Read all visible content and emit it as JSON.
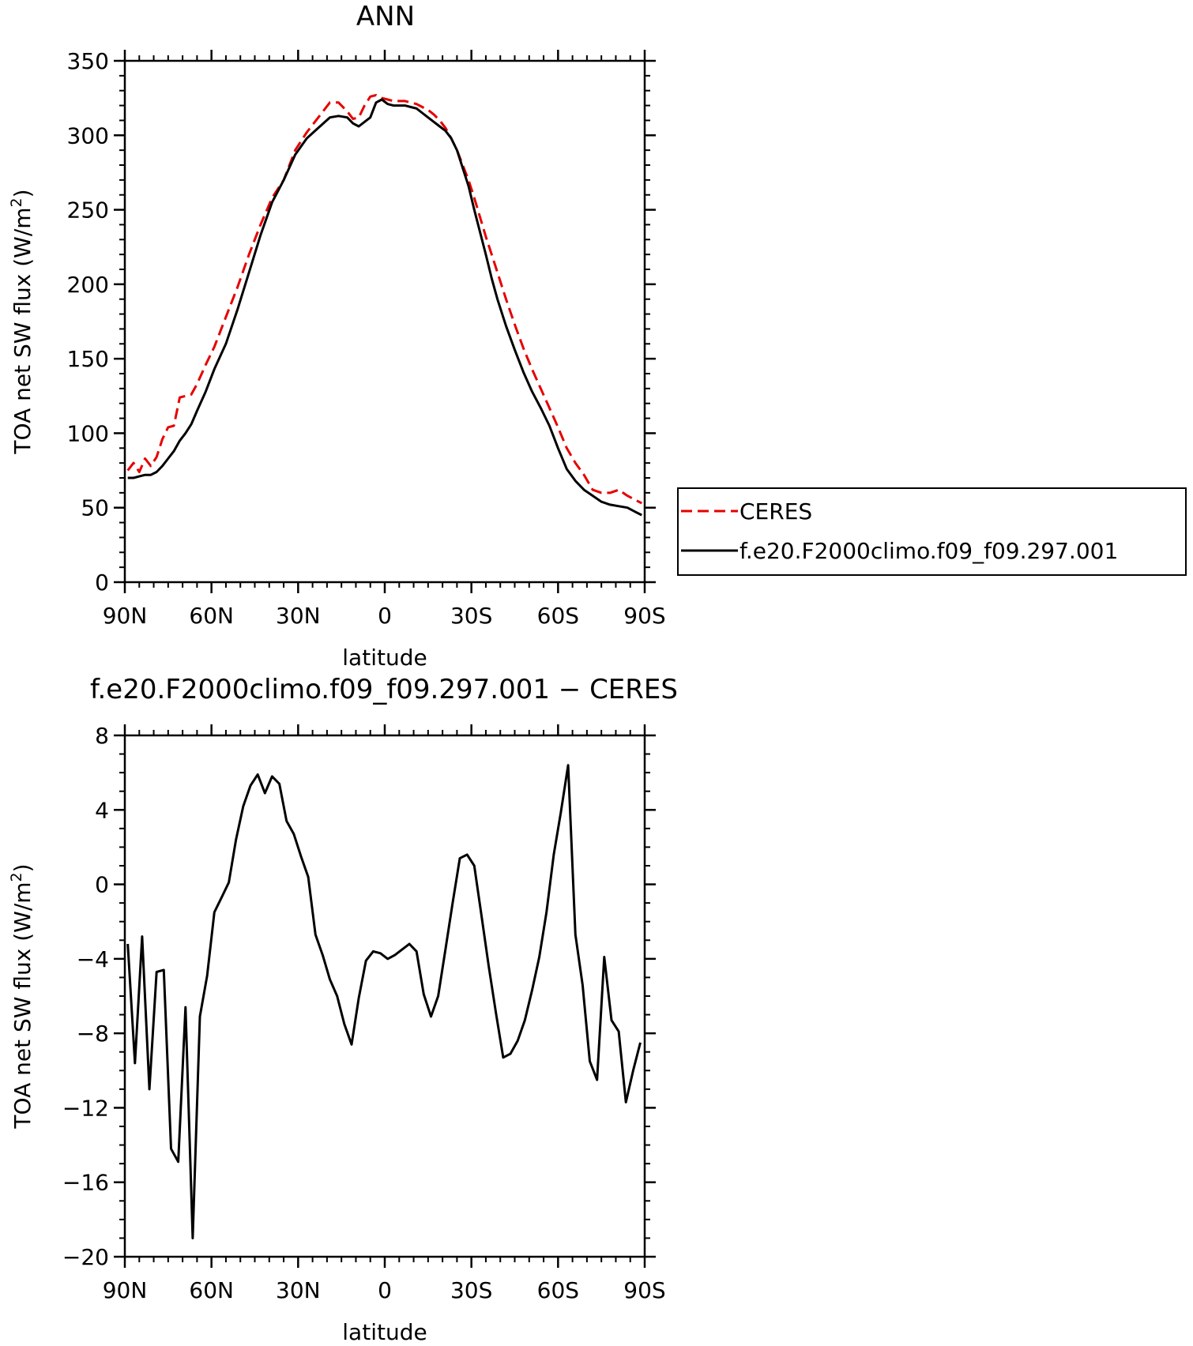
{
  "chart_data": [
    {
      "type": "line",
      "title": "ANN",
      "xlabel": "latitude",
      "ylabel": "TOA net SW flux (W/m",
      "ylabel_sup": "2",
      "ylabel_close": ")",
      "xlim": [
        90,
        -90
      ],
      "ylim": [
        0,
        350
      ],
      "x_ticks": [
        {
          "value": 90,
          "label": "90N"
        },
        {
          "value": 60,
          "label": "60N"
        },
        {
          "value": 30,
          "label": "30N"
        },
        {
          "value": 0,
          "label": "0"
        },
        {
          "value": -30,
          "label": "30S"
        },
        {
          "value": -60,
          "label": "60S"
        },
        {
          "value": -90,
          "label": "90S"
        }
      ],
      "y_ticks": [
        {
          "value": 0,
          "label": "0"
        },
        {
          "value": 50,
          "label": "50"
        },
        {
          "value": 100,
          "label": "100"
        },
        {
          "value": 150,
          "label": "150"
        },
        {
          "value": 200,
          "label": "200"
        },
        {
          "value": 250,
          "label": "250"
        },
        {
          "value": 300,
          "label": "300"
        },
        {
          "value": 350,
          "label": "350"
        }
      ],
      "legend_position": "right",
      "series": [
        {
          "name": "CERES",
          "color": "#e60000",
          "dash": "dashed",
          "x": [
            89,
            87,
            85,
            83,
            81,
            79,
            77,
            75,
            73,
            71,
            69,
            67,
            65,
            62,
            59,
            55,
            51,
            47,
            43,
            39,
            35,
            31,
            27,
            23,
            19,
            16,
            13,
            11,
            9,
            7,
            5,
            3,
            1,
            -1,
            -3,
            -5,
            -7,
            -9,
            -11,
            -13,
            -15,
            -17,
            -19,
            -21,
            -23,
            -25,
            -27,
            -29,
            -31,
            -33,
            -35,
            -37,
            -39,
            -42,
            -45,
            -48,
            -51,
            -54,
            -57,
            -60,
            -63,
            -66,
            -69,
            -72,
            -75,
            -78,
            -81,
            -84,
            -87,
            -89
          ],
          "y": [
            75,
            80,
            74,
            83,
            78,
            84,
            96,
            104,
            105,
            124,
            125,
            126,
            133,
            146,
            158,
            178,
            198,
            220,
            240,
            258,
            270,
            290,
            302,
            312,
            322,
            322,
            316,
            311,
            312,
            320,
            326,
            327,
            325,
            324,
            323,
            323,
            323,
            322,
            321,
            319,
            317,
            314,
            310,
            305,
            298,
            290,
            280,
            270,
            258,
            245,
            232,
            220,
            208,
            190,
            173,
            157,
            143,
            130,
            117,
            104,
            90,
            80,
            72,
            62,
            60,
            60,
            62,
            58,
            55,
            53
          ]
        },
        {
          "name": "f.e20.F2000climo.f09_f09.297.001",
          "color": "#000000",
          "dash": "solid",
          "x": [
            89,
            87,
            85,
            83,
            81,
            79,
            77,
            75,
            73,
            71,
            69,
            67,
            65,
            62,
            59,
            55,
            51,
            47,
            43,
            39,
            35,
            31,
            27,
            23,
            19,
            16,
            13,
            11,
            9,
            7,
            5,
            3,
            1,
            -1,
            -3,
            -5,
            -7,
            -9,
            -11,
            -13,
            -15,
            -17,
            -19,
            -21,
            -23,
            -25,
            -27,
            -29,
            -31,
            -33,
            -35,
            -37,
            -39,
            -42,
            -45,
            -48,
            -51,
            -54,
            -57,
            -60,
            -63,
            -66,
            -69,
            -72,
            -75,
            -78,
            -81,
            -84,
            -87,
            -89
          ],
          "y": [
            70,
            70,
            71,
            72,
            72,
            74,
            78,
            83,
            88,
            95,
            100,
            106,
            115,
            128,
            143,
            160,
            183,
            208,
            233,
            255,
            270,
            287,
            298,
            305,
            312,
            313,
            312,
            308,
            306,
            309,
            312,
            322,
            324,
            321,
            320,
            320,
            320,
            319,
            318,
            315,
            312,
            309,
            306,
            303,
            298,
            290,
            278,
            266,
            250,
            235,
            220,
            204,
            190,
            172,
            156,
            141,
            128,
            117,
            105,
            90,
            76,
            68,
            62,
            58,
            54,
            52,
            51,
            50,
            47,
            45
          ]
        }
      ]
    },
    {
      "type": "line",
      "title": "f.e20.F2000climo.f09_f09.297.001 − CERES",
      "xlabel": "latitude",
      "ylabel": "TOA net SW flux (W/m",
      "ylabel_sup": "2",
      "ylabel_close": ")",
      "xlim": [
        90,
        -90
      ],
      "ylim": [
        -20,
        8
      ],
      "x_ticks": [
        {
          "value": 90,
          "label": "90N"
        },
        {
          "value": 60,
          "label": "60N"
        },
        {
          "value": 30,
          "label": "30N"
        },
        {
          "value": 0,
          "label": "0"
        },
        {
          "value": -30,
          "label": "30S"
        },
        {
          "value": -60,
          "label": "60S"
        },
        {
          "value": -90,
          "label": "90S"
        }
      ],
      "y_ticks": [
        {
          "value": -20,
          "label": "−20"
        },
        {
          "value": -16,
          "label": "−16"
        },
        {
          "value": -12,
          "label": "−12"
        },
        {
          "value": -8,
          "label": "−8"
        },
        {
          "value": -4,
          "label": "−4"
        },
        {
          "value": 0,
          "label": "0"
        },
        {
          "value": 4,
          "label": "4"
        },
        {
          "value": 8,
          "label": "8"
        }
      ],
      "series": [
        {
          "color": "#000000",
          "dash": "solid",
          "x": [
            89,
            86.5,
            84,
            81.5,
            79,
            76.5,
            74,
            71.5,
            69,
            66.5,
            64,
            61.5,
            59,
            56.5,
            54,
            51.5,
            49,
            46.5,
            44,
            41.5,
            39,
            36.5,
            34,
            31.5,
            29,
            26.5,
            24,
            21.5,
            19,
            16.5,
            14,
            11.5,
            9,
            6.5,
            4,
            1.5,
            -1,
            -3.5,
            -6,
            -8.5,
            -11,
            -13.5,
            -16,
            -18.5,
            -21,
            -23.5,
            -26,
            -28.5,
            -31,
            -33.5,
            -36,
            -38.5,
            -41,
            -43.5,
            -46,
            -48.5,
            -51,
            -53.5,
            -56,
            -58.5,
            -61,
            -63.5,
            -66,
            -68.5,
            -71,
            -73.5,
            -76,
            -78.5,
            -81,
            -83.5,
            -86,
            -88.5
          ],
          "y": [
            -3.2,
            -9.6,
            -2.8,
            -11.0,
            -4.7,
            -4.6,
            -14.2,
            -14.9,
            -6.6,
            -19.0,
            -7.1,
            -4.9,
            -1.5,
            -0.7,
            0.1,
            2.4,
            4.2,
            5.3,
            5.9,
            4.9,
            5.8,
            5.4,
            3.4,
            2.7,
            1.5,
            0.4,
            -2.7,
            -3.8,
            -5.1,
            -6.0,
            -7.5,
            -8.6,
            -6.1,
            -4.1,
            -3.6,
            -3.7,
            -4.0,
            -3.8,
            -3.5,
            -3.2,
            -3.6,
            -5.9,
            -7.1,
            -6.0,
            -3.5,
            -1.0,
            1.4,
            1.6,
            1.0,
            -1.7,
            -4.4,
            -6.9,
            -9.3,
            -9.1,
            -8.4,
            -7.3,
            -5.7,
            -3.9,
            -1.5,
            1.6,
            3.9,
            6.4,
            -2.7,
            -5.4,
            -9.5,
            -10.5,
            -3.9,
            -7.3,
            -7.9,
            -11.7,
            -10.0,
            -8.5
          ]
        }
      ]
    }
  ]
}
